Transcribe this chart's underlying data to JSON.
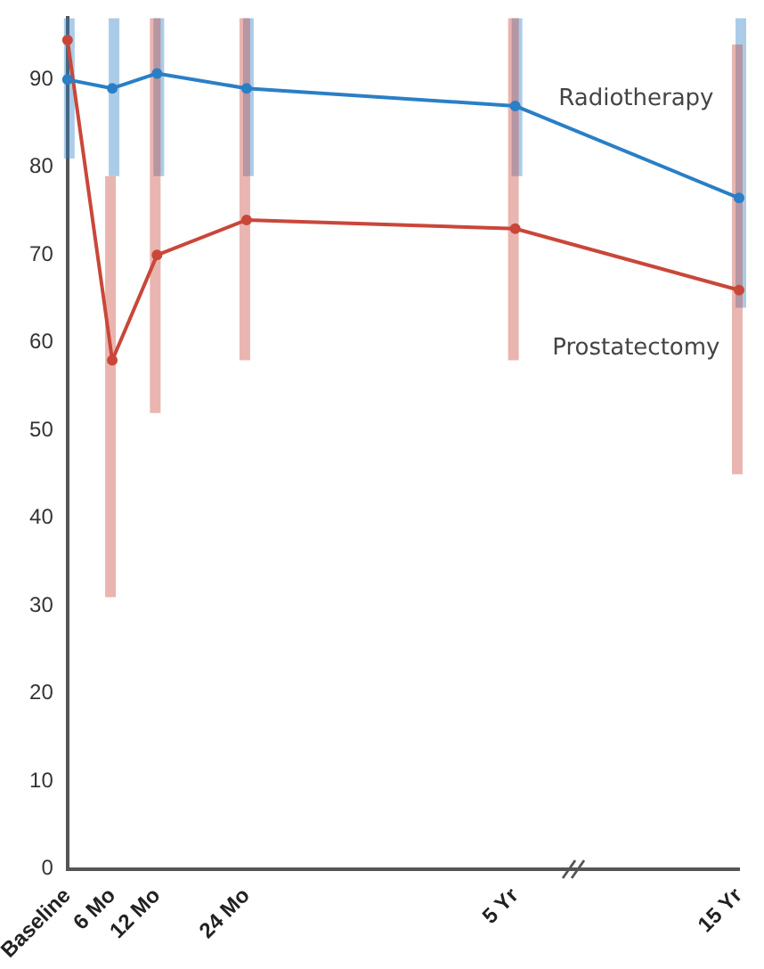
{
  "chart_data": {
    "type": "line",
    "categories": [
      "Baseline",
      "6 Mo",
      "12 Mo",
      null,
      "24 Mo",
      null,
      null,
      null,
      null,
      null,
      "5 Yr",
      null,
      null,
      null,
      null,
      "15 Yr"
    ],
    "ylim": [
      0,
      97
    ],
    "yticks": [
      0,
      10,
      20,
      30,
      40,
      50,
      60,
      70,
      80,
      90
    ],
    "grid": false,
    "legend": false,
    "marker": "circle",
    "line_style": "solid",
    "series": [
      {
        "name": "Radiotherapy",
        "color": "#2a7fc6",
        "values": [
          90,
          89,
          90.7,
          null,
          89,
          null,
          null,
          null,
          null,
          null,
          87,
          null,
          null,
          null,
          null,
          76.5
        ],
        "errors": [
          [
            81,
            97
          ],
          [
            79,
            97
          ],
          [
            79,
            97
          ],
          null,
          [
            79,
            97
          ],
          null,
          null,
          null,
          null,
          null,
          [
            79,
            97
          ],
          null,
          null,
          null,
          null,
          [
            64,
            97
          ]
        ]
      },
      {
        "name": "Prostatectomy",
        "color": "#c9473a",
        "values": [
          94.5,
          58,
          70,
          null,
          74,
          null,
          null,
          null,
          null,
          null,
          73,
          null,
          null,
          null,
          null,
          66
        ],
        "errors": [
          null,
          [
            31,
            79
          ],
          [
            52,
            97
          ],
          null,
          [
            58,
            97
          ],
          null,
          null,
          null,
          null,
          null,
          [
            58,
            97
          ],
          null,
          null,
          null,
          null,
          [
            45,
            94
          ]
        ]
      }
    ]
  }
}
